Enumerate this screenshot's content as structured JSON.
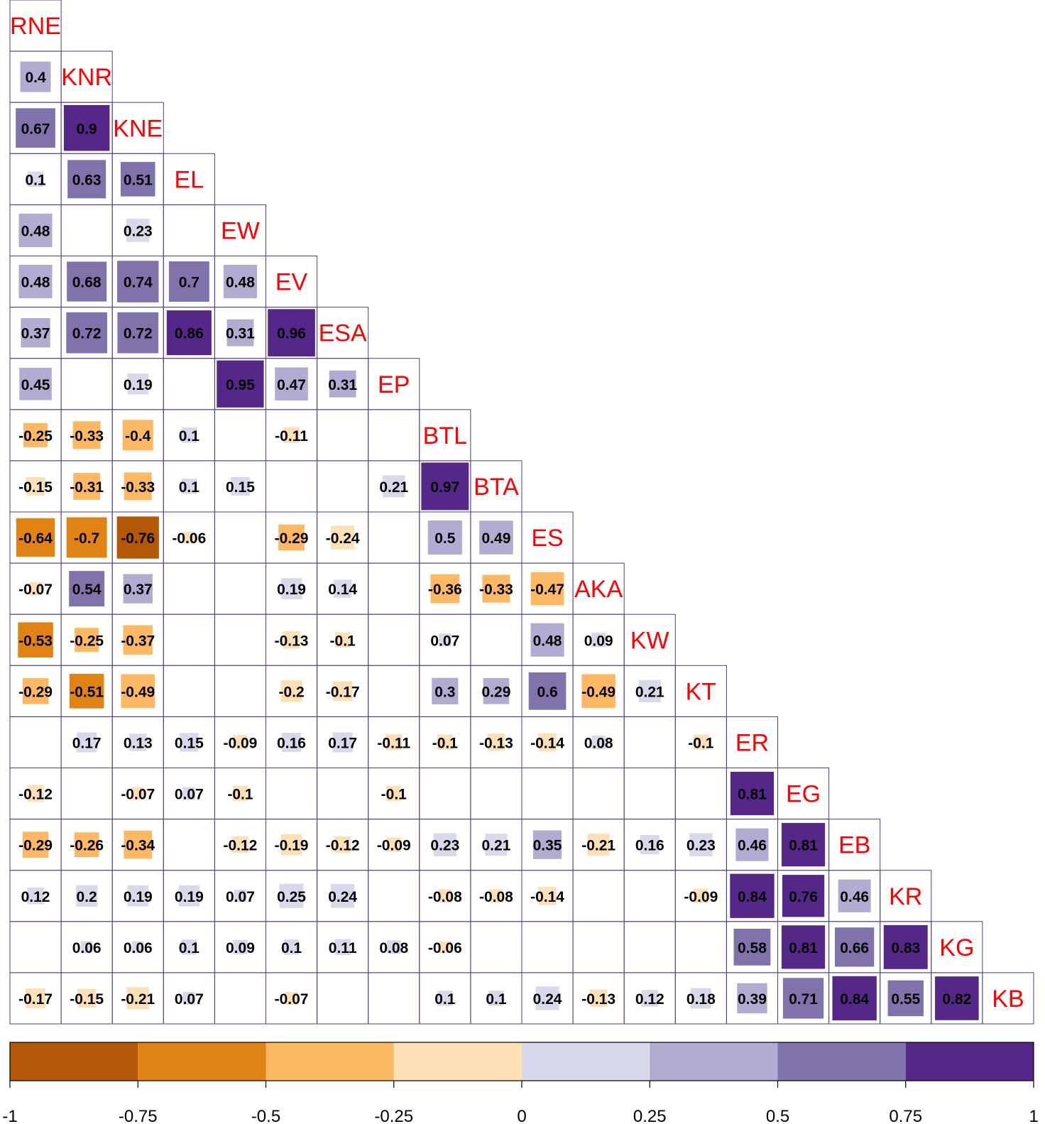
{
  "chart_data": {
    "type": "heatmap",
    "layout": "lower-triangle",
    "variables": [
      "RNE",
      "KNR",
      "KNE",
      "EL",
      "EW",
      "EV",
      "ESA",
      "EP",
      "BTL",
      "BTA",
      "ES",
      "AKA",
      "KW",
      "KT",
      "ER",
      "EG",
      "EB",
      "KR",
      "KG",
      "KB"
    ],
    "rows": [
      [],
      [
        0.4
      ],
      [
        0.67,
        0.9
      ],
      [
        0.1,
        0.63,
        0.51
      ],
      [
        0.48,
        null,
        0.23,
        null
      ],
      [
        0.48,
        0.68,
        0.74,
        0.7,
        0.48
      ],
      [
        0.37,
        0.72,
        0.72,
        0.86,
        0.31,
        0.96
      ],
      [
        0.45,
        null,
        0.19,
        null,
        0.95,
        0.47,
        0.31
      ],
      [
        -0.25,
        -0.33,
        -0.4,
        0.1,
        null,
        -0.11,
        null,
        null
      ],
      [
        -0.15,
        -0.31,
        -0.33,
        0.1,
        0.15,
        null,
        null,
        0.21,
        0.97
      ],
      [
        -0.64,
        -0.7,
        -0.76,
        -0.06,
        null,
        -0.29,
        -0.24,
        null,
        0.5,
        0.49
      ],
      [
        -0.07,
        0.54,
        0.37,
        null,
        null,
        0.19,
        0.14,
        null,
        -0.36,
        -0.33,
        -0.47
      ],
      [
        -0.53,
        -0.25,
        -0.37,
        null,
        null,
        -0.13,
        -0.1,
        null,
        0.07,
        null,
        0.48,
        0.09
      ],
      [
        -0.29,
        -0.51,
        -0.49,
        null,
        null,
        -0.2,
        -0.17,
        null,
        0.3,
        0.29,
        0.6,
        -0.49,
        0.21
      ],
      [
        null,
        0.17,
        0.13,
        0.15,
        -0.09,
        0.16,
        0.17,
        -0.11,
        -0.1,
        -0.13,
        -0.14,
        0.08,
        null,
        -0.1
      ],
      [
        -0.12,
        null,
        -0.07,
        0.07,
        -0.1,
        null,
        null,
        -0.1,
        null,
        null,
        null,
        null,
        null,
        null,
        0.81
      ],
      [
        -0.29,
        -0.26,
        -0.34,
        null,
        -0.12,
        -0.19,
        -0.12,
        -0.09,
        0.23,
        0.21,
        0.35,
        -0.21,
        0.16,
        0.23,
        0.46,
        0.81
      ],
      [
        0.12,
        0.2,
        0.19,
        0.19,
        0.07,
        0.25,
        0.24,
        null,
        -0.08,
        -0.08,
        -0.14,
        null,
        null,
        -0.09,
        0.84,
        0.76,
        0.46
      ],
      [
        null,
        0.06,
        0.06,
        0.1,
        0.09,
        0.1,
        0.11,
        0.08,
        -0.06,
        null,
        null,
        null,
        null,
        null,
        0.58,
        0.81,
        0.66,
        0.83
      ],
      [
        -0.17,
        -0.15,
        -0.21,
        0.07,
        null,
        -0.07,
        null,
        null,
        0.1,
        0.1,
        0.24,
        -0.13,
        0.12,
        0.18,
        0.39,
        0.71,
        0.84,
        0.55,
        0.82
      ]
    ],
    "colorbar": {
      "ticks": [
        "-1",
        "-0.75",
        "-0.5",
        "-0.25",
        "0",
        "0.25",
        "0.5",
        "0.75",
        "1"
      ],
      "bins": [
        {
          "min": -1.0,
          "max": -0.75,
          "color": "#b35806"
        },
        {
          "min": -0.75,
          "max": -0.5,
          "color": "#e08214"
        },
        {
          "min": -0.5,
          "max": -0.25,
          "color": "#fdb863"
        },
        {
          "min": -0.25,
          "max": 0.0,
          "color": "#fee0b6"
        },
        {
          "min": 0.0,
          "max": 0.25,
          "color": "#d8daeb"
        },
        {
          "min": 0.25,
          "max": 0.5,
          "color": "#b2abd2"
        },
        {
          "min": 0.5,
          "max": 0.75,
          "color": "#8073ac"
        },
        {
          "min": 0.75,
          "max": 1.0,
          "color": "#542788"
        }
      ]
    },
    "diag_label_color": "#ff0000",
    "grid_color": "#4b3d8f"
  }
}
